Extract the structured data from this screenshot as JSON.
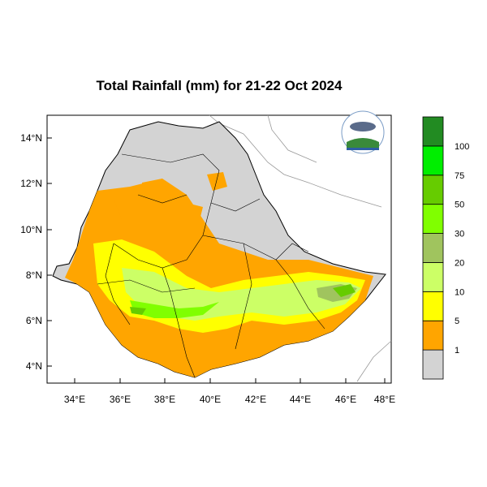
{
  "title": "Total Rainfall (mm) for 21-22 Oct 2024",
  "axes": {
    "y_ticks": [
      "14°N",
      "12°N",
      "10°N",
      "8°N",
      "6°N",
      "4°N"
    ],
    "x_ticks": [
      "34°E",
      "36°E",
      "38°E",
      "40°E",
      "42°E",
      "44°E",
      "46°E",
      "48°E"
    ]
  },
  "legend": {
    "bins": [
      {
        "color": "#d3d3d3",
        "label": "1"
      },
      {
        "color": "#ffa500",
        "label": "5"
      },
      {
        "color": "#ffff00",
        "label": "10"
      },
      {
        "color": "#ccff66",
        "label": "20"
      },
      {
        "color": "#a0c45e",
        "label": "30"
      },
      {
        "color": "#80ff00",
        "label": "50"
      },
      {
        "color": "#66cc00",
        "label": "75"
      },
      {
        "color": "#00ee00",
        "label": "100"
      },
      {
        "color": "#228b22",
        "label": ""
      }
    ]
  },
  "colors": {
    "frame": "#000000",
    "country_fill": "#d3d3d3",
    "border_line": "#888888"
  },
  "logo_icon": "ethiopia-meteorology-institute-logo"
}
